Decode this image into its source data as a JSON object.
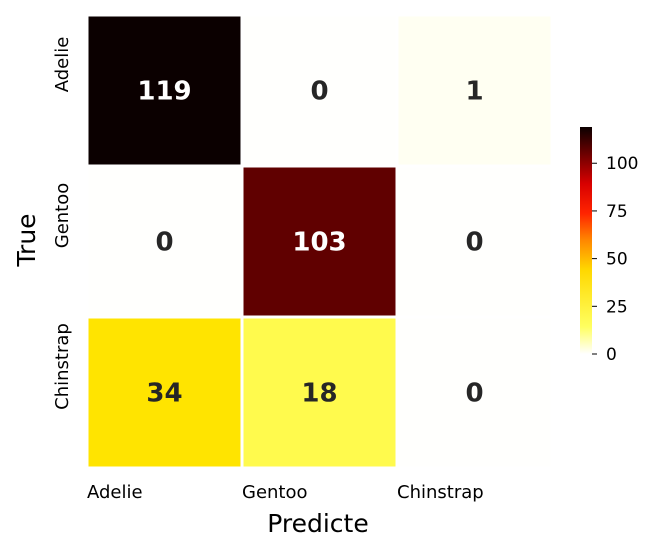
{
  "chart_data": {
    "type": "heatmap",
    "title": "",
    "xlabel": "Predicte",
    "ylabel": "True",
    "x_categories": [
      "Adelie",
      "Gentoo",
      "Chinstrap"
    ],
    "y_categories": [
      "Adelie",
      "Gentoo",
      "Chinstrap"
    ],
    "values": [
      [
        119,
        0,
        1
      ],
      [
        0,
        103,
        0
      ],
      [
        34,
        18,
        0
      ]
    ],
    "annotation_labels": [
      [
        "119",
        "0",
        "1"
      ],
      [
        "0",
        "103",
        "0"
      ],
      [
        "34",
        "18",
        "0"
      ]
    ],
    "colormap": "hot_r",
    "colorbar": {
      "vmin": 0,
      "vmax": 119,
      "ticks": [
        0,
        25,
        50,
        75,
        100
      ],
      "tick_labels": [
        "0",
        "25",
        "50",
        "75",
        "100"
      ]
    },
    "grid": false
  }
}
